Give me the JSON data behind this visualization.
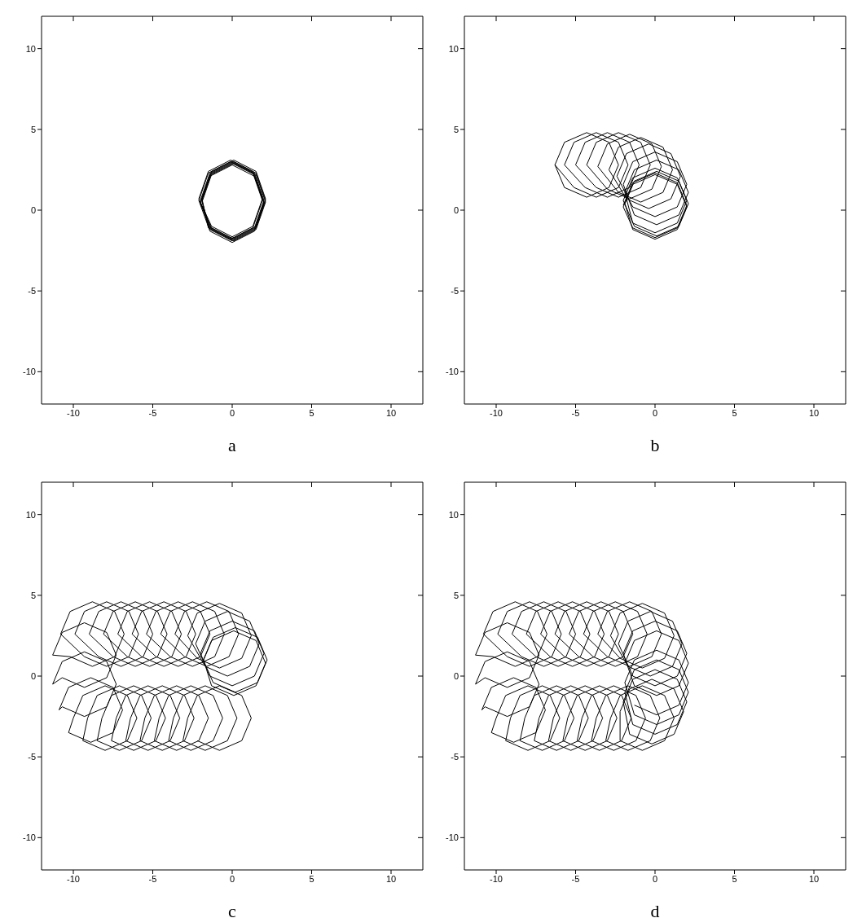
{
  "chart_data": [
    {
      "type": "line",
      "xlabel": "a",
      "xlim": [
        -12,
        12
      ],
      "ylim": [
        -12,
        12
      ],
      "xticks": [
        -10,
        -5,
        0,
        5,
        10
      ],
      "yticks": [
        -10,
        -5,
        0,
        5,
        10
      ],
      "marker": "none",
      "line_style": "solid",
      "series": [
        {
          "color": "#000000",
          "x": [
            -2,
            -1.4,
            0,
            1.4,
            2,
            1.4,
            0,
            -1.4,
            -1.9,
            -1.3,
            0.1,
            1.5,
            2.1,
            1.5,
            0.1,
            -1.3,
            -2.1,
            -1.5,
            -0.1,
            1.3,
            1.9,
            1.3,
            -0.1,
            -1.5,
            -1.9,
            -1.3,
            0.1,
            1.5,
            2.1,
            1.5,
            0.1,
            -1.3,
            -2,
            -1.4,
            0,
            1.4,
            2,
            1.4,
            0,
            -1.4,
            -2.1,
            -1.5,
            -0.1,
            1.3,
            1.9,
            1.3,
            -0.1,
            -1.5,
            -1.9,
            -1.3,
            0.1,
            1.5,
            2.1,
            1.5,
            0.1,
            -1.3,
            -2,
            -1.4,
            0,
            1.4,
            2,
            1.4,
            0,
            -1.4,
            -2
          ],
          "values": [
            0.6,
            2.3,
            3,
            2.3,
            0.6,
            -1.1,
            -1.8,
            -1.1,
            0.5,
            2.2,
            2.9,
            2.2,
            0.5,
            -1.2,
            -1.9,
            -1.2,
            0.7,
            2.4,
            3.1,
            2.4,
            0.7,
            -1,
            -1.7,
            -1,
            0.6,
            2.3,
            3,
            2.3,
            0.6,
            -1.1,
            -1.8,
            -1.1,
            0.4,
            2.1,
            2.8,
            2.1,
            0.4,
            -1.3,
            -2,
            -1.3,
            0.6,
            2.3,
            3,
            2.3,
            0.6,
            -1.1,
            -1.8,
            -1.1,
            0.7,
            2.4,
            3.1,
            2.4,
            0.7,
            -1,
            -1.7,
            -1,
            0.5,
            2.2,
            2.9,
            2.2,
            0.5,
            -1.2,
            -1.9,
            -1.2,
            0.5
          ]
        }
      ]
    },
    {
      "type": "line",
      "xlabel": "b",
      "xlim": [
        -12,
        12
      ],
      "ylim": [
        -12,
        12
      ],
      "xticks": [
        -10,
        -5,
        0,
        5,
        10
      ],
      "yticks": [
        -10,
        -5,
        0,
        5,
        10
      ],
      "marker": "none",
      "line_style": "solid",
      "series": [
        {
          "color": "#000000",
          "x": [
            -2,
            -1.4,
            0,
            1.4,
            2,
            1.4,
            0,
            -1.4,
            -2,
            -1.4,
            0,
            1.4,
            2,
            1.4,
            0,
            -1.4,
            -1.9,
            -1.3,
            0.1,
            1.5,
            2.1,
            1.5,
            0.1,
            -1.3,
            -2,
            -1.4,
            0,
            1.4,
            2,
            1.4,
            0,
            -1.4,
            -1.9,
            -1.3,
            0.1,
            1.5,
            2.1,
            1.5,
            0.1,
            -1.3,
            -2,
            -1.4,
            0,
            1.4,
            2,
            1.4,
            0,
            -1.4,
            -2.4,
            -1.8,
            -0.4,
            1,
            1.6,
            1,
            -0.4,
            -1.8,
            -2.9,
            -2.3,
            -0.9,
            0.5,
            1.1,
            0.5,
            -0.9,
            -2.3,
            -3.6,
            -3,
            -1.6,
            -0.2,
            0.4,
            -0.2,
            -1.6,
            -3,
            -4.3,
            -3.7,
            -2.3,
            -0.9,
            -0.3,
            -0.9,
            -2.3,
            -3.7,
            -5,
            -4.4,
            -3,
            -1.6,
            -1,
            -1.6,
            -3,
            -4.4,
            -5.7,
            -5.1,
            -3.7,
            -2.3,
            -1.7,
            -2.3,
            -3.7,
            -5.1,
            -6.3,
            -5.7,
            -4.3,
            -2.9,
            -2.3,
            -2.9,
            -4.3,
            -5.7,
            -6.3
          ],
          "values": [
            0.3,
            1.7,
            2.3,
            1.7,
            0.3,
            -1.1,
            -1.7,
            -1.1,
            0.2,
            1.6,
            2.2,
            1.6,
            0.2,
            -1.2,
            -1.8,
            -1.2,
            0.4,
            1.8,
            2.4,
            1.8,
            0.4,
            -1,
            -1.6,
            -1,
            0.6,
            2,
            2.6,
            2,
            0.6,
            -0.8,
            -1.4,
            -0.8,
            1.1,
            2.5,
            3.1,
            2.5,
            1.1,
            -0.3,
            -0.9,
            -0.3,
            1.6,
            3,
            3.6,
            3,
            1.6,
            0.2,
            -0.4,
            0.2,
            2.1,
            3.5,
            4.1,
            3.5,
            2.1,
            0.7,
            0.1,
            0.7,
            2.5,
            3.9,
            4.5,
            3.9,
            2.5,
            1.1,
            0.5,
            1.1,
            2.7,
            4.1,
            4.7,
            4.1,
            2.7,
            1.3,
            0.7,
            1.3,
            2.8,
            4.2,
            4.8,
            4.2,
            2.8,
            1.4,
            0.8,
            1.4,
            2.8,
            4.2,
            4.8,
            4.2,
            2.8,
            1.4,
            0.8,
            1.4,
            2.8,
            4.2,
            4.8,
            4.2,
            2.8,
            1.4,
            0.8,
            1.4,
            2.8,
            4.2,
            4.8,
            4.2,
            2.8,
            1.4,
            0.8,
            1.4,
            2.8
          ]
        }
      ]
    },
    {
      "type": "line",
      "xlabel": "c",
      "xlim": [
        -12,
        12
      ],
      "ylim": [
        -12,
        12
      ],
      "xticks": [
        -10,
        -5,
        0,
        5,
        10
      ],
      "yticks": [
        -10,
        -5,
        0,
        5,
        10
      ],
      "marker": "none",
      "line_style": "solid",
      "series": [
        {
          "color": "#000000",
          "x": [
            -1.9,
            -1.3,
            0.1,
            1.5,
            2.1,
            1.5,
            0.1,
            -1.3,
            -1.8,
            -1.2,
            0.2,
            1.6,
            2.2,
            1.6,
            0.2,
            -1.2,
            -2,
            -1.4,
            0,
            1.4,
            2,
            1.4,
            0,
            -1.4,
            -2.3,
            -1.7,
            -0.3,
            1.1,
            1.7,
            1.1,
            -0.3,
            -1.7,
            -2.8,
            -2.2,
            -0.8,
            0.6,
            1.2,
            0.6,
            -0.8,
            -2.2,
            -3.6,
            -3,
            -1.6,
            -0.2,
            0.4,
            -0.2,
            -1.6,
            -3,
            -4.5,
            -3.9,
            -2.5,
            -1.1,
            -0.5,
            -1.1,
            -2.5,
            -3.9,
            -5.4,
            -4.8,
            -3.4,
            -2,
            -1.4,
            -2,
            -3.4,
            -4.8,
            -6.3,
            -5.7,
            -4.3,
            -2.9,
            -2.3,
            -2.9,
            -4.3,
            -5.7,
            -7.2,
            -6.6,
            -5.2,
            -3.8,
            -3.2,
            -3.8,
            -5.2,
            -6.6,
            -8.1,
            -7.5,
            -6.1,
            -4.7,
            -4.1,
            -4.7,
            -6.1,
            -7.5,
            -9,
            -8.4,
            -7,
            -5.6,
            -5,
            -5.6,
            -7,
            -8.4,
            -9.9,
            -9.3,
            -7.9,
            -6.5,
            -5.9,
            -6.5,
            -7.9,
            -9.3,
            -10.8,
            -10.2,
            -8.8,
            -7.4,
            -6.8,
            -7.4,
            -8.8,
            -10.2,
            -11.3,
            -10.7,
            -9.3,
            -7.9,
            -7.3,
            -7.9,
            -9.3,
            -10.7,
            -11.3,
            -10.7,
            -9.3,
            -7.9,
            -7.3,
            -7.9,
            -9.3,
            -10.7,
            -10.9,
            -10.3,
            -8.9,
            -7.5,
            -6.9,
            -7.5,
            -8.9,
            -10.3,
            -10,
            -9.4,
            -8,
            -6.6,
            -6,
            -6.6,
            -8,
            -9.4,
            -9.1,
            -8.5,
            -7.1,
            -5.7,
            -5.1,
            -5.7,
            -7.1,
            -8.5,
            -8.2,
            -7.6,
            -6.2,
            -4.8,
            -4.2,
            -4.8,
            -6.2,
            -7.6,
            -7.3,
            -6.7,
            -5.3,
            -3.9,
            -3.3,
            -3.9,
            -5.3,
            -6.7,
            -6.4,
            -5.8,
            -4.4,
            -3,
            -2.4,
            -3,
            -4.4,
            -5.8,
            -5.5,
            -4.9,
            -3.5,
            -2.1,
            -1.5,
            -2.1,
            -3.5,
            -4.9,
            -4.6,
            -4,
            -2.6,
            -1.2,
            -0.6,
            -1.2,
            -2.6,
            -4,
            -3.7,
            -3.1,
            -1.7,
            -0.3,
            0.3,
            -0.3,
            -1.7,
            -3.1,
            -2.8,
            -2.2,
            -0.8,
            0.6,
            1.2,
            0.6,
            -0.8,
            -2.2
          ],
          "values": [
            0.8,
            2.2,
            2.8,
            2.2,
            0.8,
            -0.6,
            -1.2,
            -0.6,
            1,
            2.4,
            3,
            2.4,
            1,
            -0.4,
            -1,
            -0.4,
            1.4,
            2.8,
            3.4,
            2.8,
            1.4,
            0,
            -0.6,
            0,
            2,
            3.4,
            4,
            3.4,
            2,
            0.6,
            0,
            0.6,
            2.5,
            3.9,
            4.5,
            3.9,
            2.5,
            1.1,
            0.5,
            1.1,
            2.6,
            4,
            4.6,
            4,
            2.6,
            1.2,
            0.6,
            1.2,
            2.6,
            4,
            4.6,
            4,
            2.6,
            1.2,
            0.6,
            1.2,
            2.6,
            4,
            4.6,
            4,
            2.6,
            1.2,
            0.6,
            1.2,
            2.6,
            4,
            4.6,
            4,
            2.6,
            1.2,
            0.6,
            1.2,
            2.6,
            4,
            4.6,
            4,
            2.6,
            1.2,
            0.6,
            1.2,
            2.6,
            4,
            4.6,
            4,
            2.6,
            1.2,
            0.6,
            1.2,
            2.6,
            4,
            4.6,
            4,
            2.6,
            1.2,
            0.6,
            1.2,
            2.6,
            4,
            4.6,
            4,
            2.6,
            1.2,
            0.6,
            1.2,
            2.6,
            4,
            4.6,
            4,
            2.6,
            1.2,
            0.6,
            1.2,
            1.3,
            2.7,
            3.3,
            2.7,
            1.3,
            -0.1,
            -0.7,
            -0.1,
            -0.5,
            0.9,
            1.5,
            0.9,
            -0.5,
            -1.9,
            -2.5,
            -1.9,
            -2.1,
            -0.7,
            -0.1,
            -0.7,
            -2.1,
            -3.5,
            -4.1,
            -3.5,
            -2.6,
            -1.2,
            -0.6,
            -1.2,
            -2.6,
            -4,
            -4.6,
            -4,
            -2.6,
            -1.2,
            -0.6,
            -1.2,
            -2.6,
            -4,
            -4.6,
            -4,
            -2.6,
            -1.2,
            -0.6,
            -1.2,
            -2.6,
            -4,
            -4.6,
            -4,
            -2.6,
            -1.2,
            -0.6,
            -1.2,
            -2.6,
            -4,
            -4.6,
            -4,
            -2.6,
            -1.2,
            -0.6,
            -1.2,
            -2.6,
            -4,
            -4.6,
            -4,
            -2.6,
            -1.2,
            -0.6,
            -1.2,
            -2.6,
            -4,
            -4.6,
            -4,
            -2.6,
            -1.2,
            -0.6,
            -1.2,
            -2.6,
            -4,
            -4.6,
            -4,
            -2.6,
            -1.2,
            -0.6,
            -1.2,
            -2.6,
            -4,
            -4.6,
            -4,
            -2.6,
            -1.2,
            -0.6,
            -1.2,
            -2.6,
            -4,
            -4.6,
            -4
          ]
        }
      ]
    },
    {
      "type": "line",
      "xlabel": "d",
      "xlim": [
        -12,
        12
      ],
      "ylim": [
        -12,
        12
      ],
      "xticks": [
        -10,
        -5,
        0,
        5,
        10
      ],
      "yticks": [
        -10,
        -5,
        0,
        5,
        10
      ],
      "marker": "none",
      "line_style": "solid",
      "series": [
        {
          "color": "#000000",
          "x": [
            -1.9,
            -1.3,
            0.1,
            1.5,
            2.1,
            1.5,
            0.1,
            -1.3,
            -2,
            -1.4,
            0,
            1.4,
            2,
            1.4,
            0,
            -1.4,
            -2.3,
            -1.7,
            -0.3,
            1.1,
            1.7,
            1.1,
            -0.3,
            -1.7,
            -2.8,
            -2.2,
            -0.8,
            0.6,
            1.2,
            0.6,
            -0.8,
            -2.2,
            -3.6,
            -3,
            -1.6,
            -0.2,
            0.4,
            -0.2,
            -1.6,
            -3,
            -4.5,
            -3.9,
            -2.5,
            -1.1,
            -0.5,
            -1.1,
            -2.5,
            -3.9,
            -5.4,
            -4.8,
            -3.4,
            -2,
            -1.4,
            -2,
            -3.4,
            -4.8,
            -6.3,
            -5.7,
            -4.3,
            -2.9,
            -2.3,
            -2.9,
            -4.3,
            -5.7,
            -7.2,
            -6.6,
            -5.2,
            -3.8,
            -3.2,
            -3.8,
            -5.2,
            -6.6,
            -8.1,
            -7.5,
            -6.1,
            -4.7,
            -4.1,
            -4.7,
            -6.1,
            -7.5,
            -9,
            -8.4,
            -7,
            -5.6,
            -5,
            -5.6,
            -7,
            -8.4,
            -9.9,
            -9.3,
            -7.9,
            -6.5,
            -5.9,
            -6.5,
            -7.9,
            -9.3,
            -10.8,
            -10.2,
            -8.8,
            -7.4,
            -6.8,
            -7.4,
            -8.8,
            -10.2,
            -11.3,
            -10.7,
            -9.3,
            -7.9,
            -7.3,
            -7.9,
            -9.3,
            -10.7,
            -11.3,
            -10.7,
            -9.3,
            -7.9,
            -7.3,
            -7.9,
            -9.3,
            -10.7,
            -10.9,
            -10.3,
            -8.9,
            -7.5,
            -6.9,
            -7.5,
            -8.9,
            -10.3,
            -10,
            -9.4,
            -8,
            -6.6,
            -6,
            -6.6,
            -8,
            -9.4,
            -9.1,
            -8.5,
            -7.1,
            -5.7,
            -5.1,
            -5.7,
            -7.1,
            -8.5,
            -8.2,
            -7.6,
            -6.2,
            -4.8,
            -4.2,
            -4.8,
            -6.2,
            -7.6,
            -7.3,
            -6.7,
            -5.3,
            -3.9,
            -3.3,
            -3.9,
            -5.3,
            -6.7,
            -6.4,
            -5.8,
            -4.4,
            -3,
            -2.4,
            -3,
            -4.4,
            -5.8,
            -5.5,
            -4.9,
            -3.5,
            -2.1,
            -1.5,
            -2.1,
            -3.5,
            -4.9,
            -4.6,
            -4,
            -2.6,
            -1.2,
            -0.6,
            -1.2,
            -2.6,
            -4,
            -3.7,
            -3.1,
            -1.7,
            -0.3,
            0.3,
            -0.3,
            -1.7,
            -3.1,
            -2.8,
            -2.2,
            -0.8,
            0.6,
            1.2,
            0.6,
            -0.8,
            -2.2,
            -2.2,
            -1.6,
            -0.2,
            1.2,
            1.8,
            1.2,
            -0.2,
            -1.6,
            -2,
            -1.4,
            0,
            1.4,
            2,
            1.4,
            0,
            -1.4,
            -1.9,
            -1.3,
            0.1,
            1.5,
            2.1,
            1.5,
            0.1,
            -1.3,
            -1.9,
            -1.3,
            0.1,
            1.5,
            2.1,
            1.5,
            0.1,
            -1.3
          ],
          "values": [
            0.8,
            2.2,
            2.8,
            2.2,
            0.8,
            -0.6,
            -1.2,
            -0.6,
            1.4,
            2.8,
            3.4,
            2.8,
            1.4,
            0,
            -0.6,
            0,
            2,
            3.4,
            4,
            3.4,
            2,
            0.6,
            0,
            0.6,
            2.5,
            3.9,
            4.5,
            3.9,
            2.5,
            1.1,
            0.5,
            1.1,
            2.6,
            4,
            4.6,
            4,
            2.6,
            1.2,
            0.6,
            1.2,
            2.6,
            4,
            4.6,
            4,
            2.6,
            1.2,
            0.6,
            1.2,
            2.6,
            4,
            4.6,
            4,
            2.6,
            1.2,
            0.6,
            1.2,
            2.6,
            4,
            4.6,
            4,
            2.6,
            1.2,
            0.6,
            1.2,
            2.6,
            4,
            4.6,
            4,
            2.6,
            1.2,
            0.6,
            1.2,
            2.6,
            4,
            4.6,
            4,
            2.6,
            1.2,
            0.6,
            1.2,
            2.6,
            4,
            4.6,
            4,
            2.6,
            1.2,
            0.6,
            1.2,
            2.6,
            4,
            4.6,
            4,
            2.6,
            1.2,
            0.6,
            1.2,
            2.6,
            4,
            4.6,
            4,
            2.6,
            1.2,
            0.6,
            1.2,
            1.3,
            2.7,
            3.3,
            2.7,
            1.3,
            -0.1,
            -0.7,
            -0.1,
            -0.5,
            0.9,
            1.5,
            0.9,
            -0.5,
            -1.9,
            -2.5,
            -1.9,
            -2.1,
            -0.7,
            -0.1,
            -0.7,
            -2.1,
            -3.5,
            -4.1,
            -3.5,
            -2.6,
            -1.2,
            -0.6,
            -1.2,
            -2.6,
            -4,
            -4.6,
            -4,
            -2.6,
            -1.2,
            -0.6,
            -1.2,
            -2.6,
            -4,
            -4.6,
            -4,
            -2.6,
            -1.2,
            -0.6,
            -1.2,
            -2.6,
            -4,
            -4.6,
            -4,
            -2.6,
            -1.2,
            -0.6,
            -1.2,
            -2.6,
            -4,
            -4.6,
            -4,
            -2.6,
            -1.2,
            -0.6,
            -1.2,
            -2.6,
            -4,
            -4.6,
            -4,
            -2.6,
            -1.2,
            -0.6,
            -1.2,
            -2.6,
            -4,
            -4.6,
            -4,
            -2.6,
            -1.2,
            -0.6,
            -1.2,
            -2.6,
            -4,
            -4.6,
            -4,
            -2.6,
            -1.2,
            -0.6,
            -1.2,
            -2.6,
            -4,
            -4.6,
            -4,
            -2.6,
            -1.2,
            -0.6,
            -1.2,
            -2.6,
            -4,
            -4.6,
            -4,
            -2.2,
            -0.8,
            -0.2,
            -0.8,
            -2.2,
            -3.6,
            -4.2,
            -3.6,
            -1.6,
            -0.2,
            0.4,
            -0.2,
            -1.6,
            -3,
            -3.6,
            -3,
            -1,
            0.4,
            1,
            0.4,
            -1,
            -2.4,
            -3,
            -2.4,
            -0.4,
            1,
            1.6,
            1,
            -0.4,
            -1.8,
            -2.4,
            -1.8
          ]
        }
      ]
    }
  ]
}
